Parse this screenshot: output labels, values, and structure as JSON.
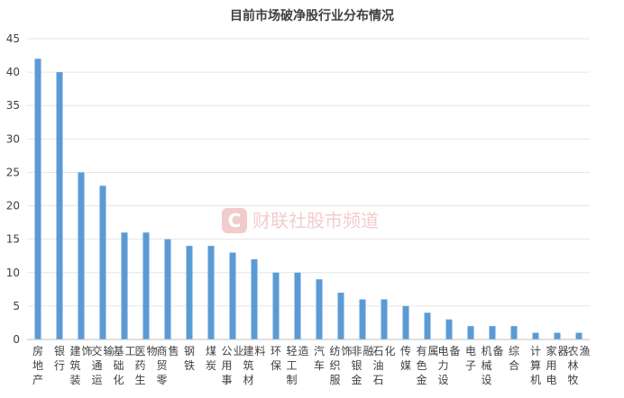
{
  "chart_data": {
    "type": "bar",
    "title": "目前市场破净股行业分布情况",
    "xlabel": "",
    "ylabel": "",
    "ylim": [
      0,
      45
    ],
    "yticks": [
      0,
      5,
      10,
      15,
      20,
      25,
      30,
      35,
      40,
      45
    ],
    "grid": true,
    "legend": "none",
    "bar_color": "#5b9bd5",
    "categories": [
      "房地产",
      "银行",
      "建筑装饰",
      "交通运输",
      "基础化工",
      "医药生物",
      "商贸零售",
      "钢铁",
      "煤炭",
      "公用事业",
      "建筑材料",
      "环保",
      "轻工制造",
      "汽车",
      "纺织服饰",
      "非银金融",
      "石油石化",
      "传媒",
      "有色金属",
      "电力设备",
      "电子",
      "机械设备",
      "综合",
      "计算机",
      "家用电器",
      "农林牧渔"
    ],
    "values": [
      42,
      40,
      25,
      23,
      16,
      16,
      15,
      14,
      14,
      13,
      12,
      10,
      10,
      9,
      7,
      6,
      6,
      5,
      4,
      3,
      2,
      2,
      2,
      1,
      1,
      1
    ]
  },
  "watermark": {
    "logo_letter": "C",
    "text": "财联社股市频道",
    "color": "#e8a3a3"
  }
}
